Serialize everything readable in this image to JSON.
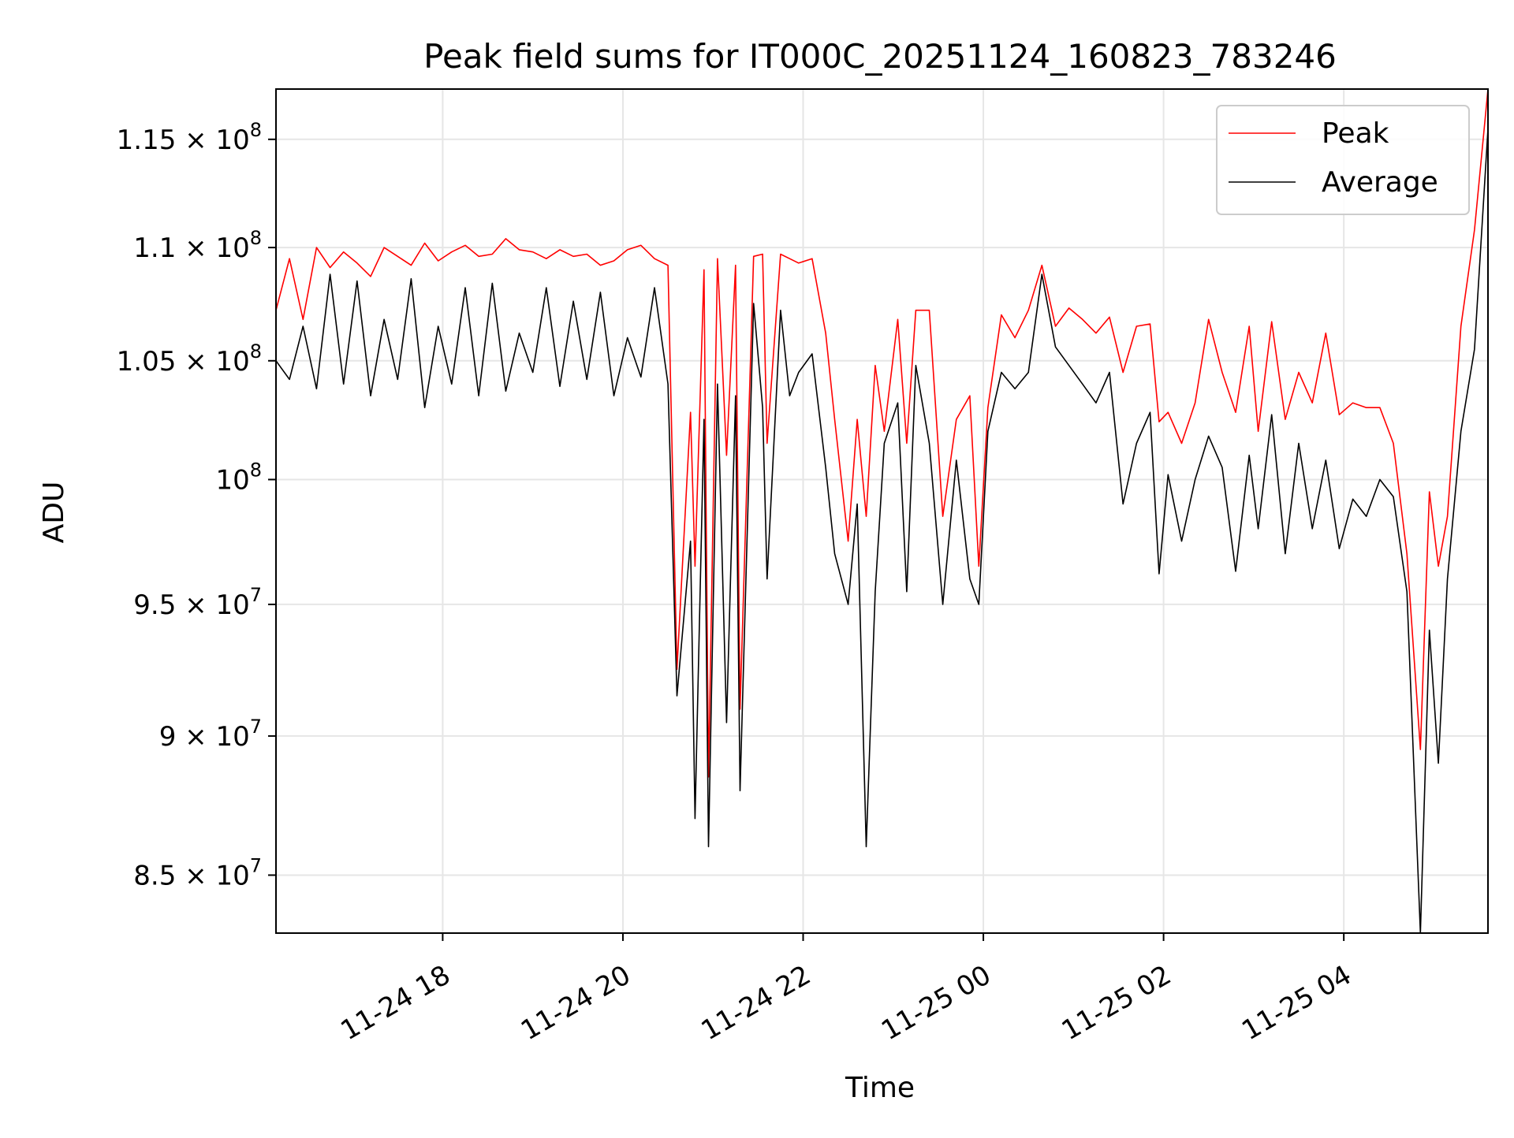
{
  "chart_data": {
    "type": "line",
    "title": "Peak field sums for IT000C_20251124_160823_783246",
    "xlabel": "Time",
    "ylabel": "ADU",
    "yscale": "log",
    "ylim": [
      83000000,
      117400000
    ],
    "xlim_hours": [
      16.15,
      29.6
    ],
    "grid": true,
    "legend_position": "top-right",
    "x_ticks": [
      {
        "hour": 18,
        "label": "11-24 18"
      },
      {
        "hour": 20,
        "label": "11-24 20"
      },
      {
        "hour": 22,
        "label": "11-24 22"
      },
      {
        "hour": 24,
        "label": "11-25 00"
      },
      {
        "hour": 26,
        "label": "11-25 02"
      },
      {
        "hour": 28,
        "label": "11-25 04"
      }
    ],
    "y_ticks": [
      {
        "value": 85000000,
        "mant": "8.5 × 10",
        "exp": "7"
      },
      {
        "value": 90000000,
        "mant": "9 × 10",
        "exp": "7"
      },
      {
        "value": 95000000,
        "mant": "9.5 × 10",
        "exp": "7"
      },
      {
        "value": 100000000,
        "mant": "10",
        "exp": "8"
      },
      {
        "value": 105000000,
        "mant": "1.05 × 10",
        "exp": "8"
      },
      {
        "value": 110000000,
        "mant": "1.1 × 10",
        "exp": "8"
      },
      {
        "value": 115000000,
        "mant": "1.15 × 10",
        "exp": "8"
      }
    ],
    "series": [
      {
        "name": "Peak",
        "color": "#ff0000",
        "x_hours": [
          16.15,
          16.3,
          16.45,
          16.6,
          16.75,
          16.9,
          17.05,
          17.2,
          17.35,
          17.5,
          17.65,
          17.8,
          17.95,
          18.1,
          18.25,
          18.4,
          18.55,
          18.7,
          18.85,
          19.0,
          19.15,
          19.3,
          19.45,
          19.6,
          19.75,
          19.9,
          20.05,
          20.2,
          20.35,
          20.5,
          20.6,
          20.75,
          20.8,
          20.9,
          20.95,
          21.05,
          21.15,
          21.25,
          21.3,
          21.45,
          21.55,
          21.6,
          21.75,
          21.85,
          21.95,
          22.1,
          22.25,
          22.35,
          22.5,
          22.6,
          22.7,
          22.8,
          22.9,
          23.05,
          23.15,
          23.25,
          23.4,
          23.55,
          23.7,
          23.85,
          23.95,
          24.05,
          24.2,
          24.35,
          24.5,
          24.65,
          24.8,
          24.95,
          25.1,
          25.25,
          25.4,
          25.55,
          25.7,
          25.85,
          25.95,
          26.05,
          26.2,
          26.35,
          26.5,
          26.65,
          26.8,
          26.95,
          27.05,
          27.2,
          27.35,
          27.5,
          27.65,
          27.8,
          27.95,
          28.1,
          28.25,
          28.4,
          28.55,
          28.7,
          28.85,
          28.95,
          29.05,
          29.15,
          29.3,
          29.45,
          29.6
        ],
        "values": [
          107200000,
          109500000,
          106800000,
          110000000,
          109100000,
          109800000,
          109300000,
          108700000,
          110000000,
          109600000,
          109200000,
          110200000,
          109400000,
          109800000,
          110100000,
          109600000,
          109700000,
          110400000,
          109900000,
          109800000,
          109500000,
          109900000,
          109600000,
          109700000,
          109200000,
          109400000,
          109900000,
          110100000,
          109500000,
          109200000,
          92500000,
          102800000,
          96500000,
          109000000,
          88500000,
          109500000,
          101000000,
          109200000,
          91000000,
          109600000,
          109700000,
          101500000,
          109700000,
          109500000,
          109300000,
          109500000,
          106200000,
          102500000,
          97500000,
          102500000,
          98500000,
          104800000,
          102000000,
          106800000,
          101500000,
          107200000,
          107200000,
          98500000,
          102500000,
          103500000,
          96500000,
          103000000,
          107000000,
          106000000,
          107200000,
          109200000,
          106500000,
          107300000,
          106800000,
          106200000,
          106900000,
          104500000,
          106500000,
          106600000,
          102400000,
          102800000,
          101500000,
          103200000,
          106800000,
          104500000,
          102800000,
          106500000,
          102000000,
          106700000,
          102500000,
          104500000,
          103200000,
          106200000,
          102700000,
          103200000,
          103000000,
          103000000,
          101500000,
          97000000,
          89500000,
          99500000,
          96500000,
          98500000,
          106500000,
          110800000,
          117400000
        ]
      },
      {
        "name": "Average",
        "color": "#000000",
        "x_hours": [
          16.15,
          16.3,
          16.45,
          16.6,
          16.75,
          16.9,
          17.05,
          17.2,
          17.35,
          17.5,
          17.65,
          17.8,
          17.95,
          18.1,
          18.25,
          18.4,
          18.55,
          18.7,
          18.85,
          19.0,
          19.15,
          19.3,
          19.45,
          19.6,
          19.75,
          19.9,
          20.05,
          20.2,
          20.35,
          20.5,
          20.6,
          20.75,
          20.8,
          20.9,
          20.95,
          21.05,
          21.15,
          21.25,
          21.3,
          21.45,
          21.55,
          21.6,
          21.75,
          21.85,
          21.95,
          22.1,
          22.25,
          22.35,
          22.5,
          22.6,
          22.7,
          22.8,
          22.9,
          23.05,
          23.15,
          23.25,
          23.4,
          23.55,
          23.7,
          23.85,
          23.95,
          24.05,
          24.2,
          24.35,
          24.5,
          24.65,
          24.8,
          24.95,
          25.1,
          25.25,
          25.4,
          25.55,
          25.7,
          25.85,
          25.95,
          26.05,
          26.2,
          26.35,
          26.5,
          26.65,
          26.8,
          26.95,
          27.05,
          27.2,
          27.35,
          27.5,
          27.65,
          27.8,
          27.95,
          28.1,
          28.25,
          28.4,
          28.55,
          28.7,
          28.85,
          28.95,
          29.05,
          29.15,
          29.3,
          29.45,
          29.6
        ],
        "values": [
          105000000,
          104200000,
          106500000,
          103800000,
          108800000,
          104000000,
          108500000,
          103500000,
          106800000,
          104200000,
          108600000,
          103000000,
          106500000,
          104000000,
          108200000,
          103500000,
          108400000,
          103700000,
          106200000,
          104500000,
          108200000,
          103900000,
          107600000,
          104200000,
          108000000,
          103500000,
          106000000,
          104300000,
          108200000,
          104000000,
          91500000,
          97500000,
          87000000,
          102500000,
          86000000,
          104000000,
          90500000,
          103500000,
          88000000,
          107500000,
          103000000,
          96000000,
          107200000,
          103500000,
          104500000,
          105300000,
          100500000,
          97000000,
          95000000,
          99000000,
          86000000,
          95500000,
          101500000,
          103200000,
          95500000,
          104800000,
          101500000,
          95000000,
          100800000,
          96000000,
          95000000,
          102000000,
          104500000,
          103800000,
          104500000,
          108800000,
          105600000,
          104800000,
          104000000,
          103200000,
          104500000,
          99000000,
          101500000,
          102800000,
          96200000,
          100200000,
          97500000,
          100000000,
          101800000,
          100500000,
          96300000,
          101000000,
          98000000,
          102700000,
          97000000,
          101500000,
          98000000,
          100800000,
          97200000,
          99200000,
          98500000,
          100000000,
          99300000,
          95500000,
          83000000,
          94000000,
          89000000,
          96000000,
          102000000,
          105500000,
          115500000
        ]
      }
    ]
  }
}
